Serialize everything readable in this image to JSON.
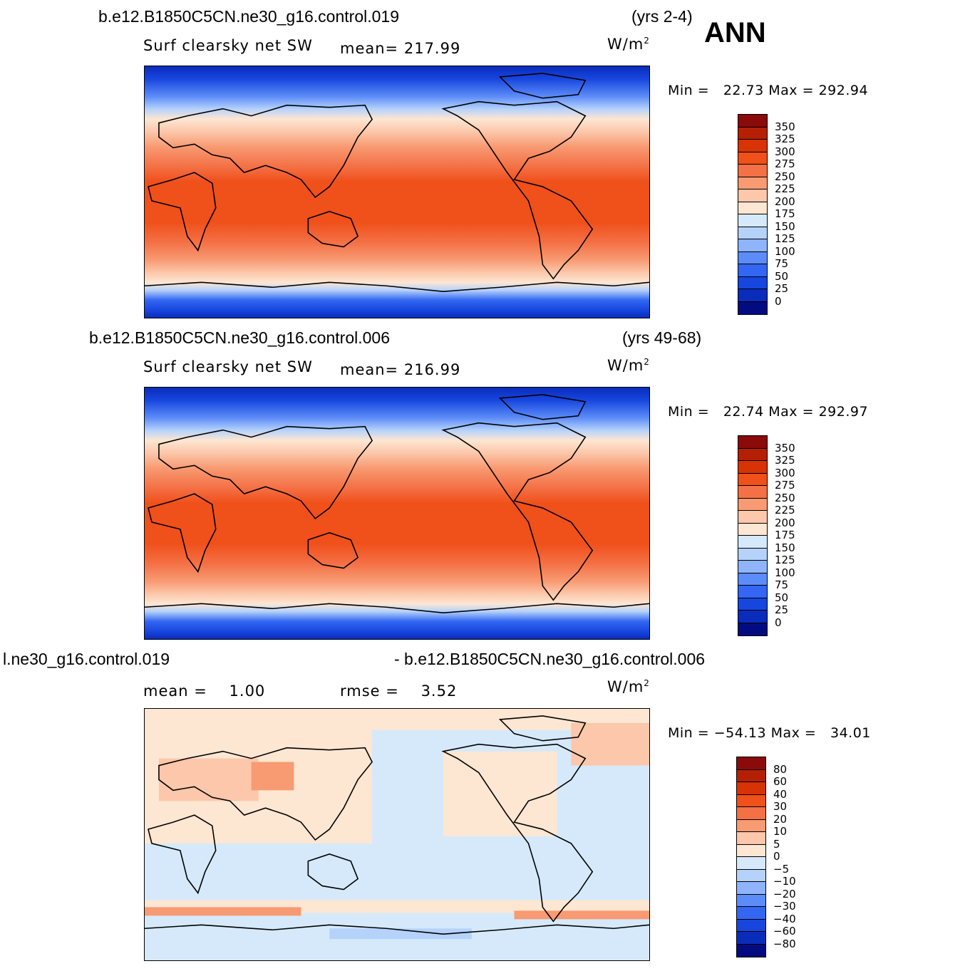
{
  "header": {
    "season": "ANN"
  },
  "panels": [
    {
      "case": "b.e12.B1850C5CN.ne30_g16.control.019",
      "years": "(yrs 2-4)",
      "variable": "Surf clearsky net SW",
      "mean_label": "mean=",
      "mean": "217.99",
      "units": "W/m",
      "units_exp": "2",
      "min_label": "Min =",
      "min": "22.73",
      "max_label": "Max =",
      "max": "292.94"
    },
    {
      "case": "b.e12.B1850C5CN.ne30_g16.control.006",
      "years": "(yrs 49-68)",
      "variable": "Surf clearsky net SW",
      "mean_label": "mean=",
      "mean": "216.99",
      "units": "W/m",
      "units_exp": "2",
      "min_label": "Min =",
      "min": "22.74",
      "max_label": "Max =",
      "max": "292.97"
    },
    {
      "case": "l.ne30_g16.control.019",
      "case_b": "- b.e12.B1850C5CN.ne30_g16.control.006",
      "mean_label": "mean =",
      "mean": "1.00",
      "rmse_label": "rmse =",
      "rmse": "3.52",
      "units": "W/m",
      "units_exp": "2",
      "min_label": "Min =",
      "min": "−54.13",
      "max_label": "Max =",
      "max": "34.01"
    }
  ],
  "colorbars": {
    "absolute": {
      "ticks": [
        "350",
        "325",
        "300",
        "275",
        "250",
        "225",
        "200",
        "175",
        "150",
        "125",
        "100",
        "75",
        "50",
        "25",
        "0"
      ],
      "colors": [
        "#8b0a0a",
        "#b52005",
        "#d83305",
        "#f0501a",
        "#f47045",
        "#f89a72",
        "#fcc7aa",
        "#fde6d2",
        "#d5e9fa",
        "#b5d2fb",
        "#8fb4fb",
        "#5c8cf8",
        "#3366f2",
        "#1746de",
        "#0a2cbb",
        "#020c80"
      ]
    },
    "difference": {
      "ticks": [
        "80",
        "60",
        "40",
        "30",
        "20",
        "10",
        "5",
        "0",
        "−5",
        "−10",
        "−20",
        "−30",
        "−40",
        "−60",
        "−80"
      ],
      "colors": [
        "#8b0a0a",
        "#b52005",
        "#d83305",
        "#f0501a",
        "#f47045",
        "#f89a72",
        "#fcc7aa",
        "#fde6d2",
        "#d5e9fa",
        "#b5d2fb",
        "#8fb4fb",
        "#5c8cf8",
        "#3366f2",
        "#1746de",
        "#0a2cbb",
        "#020c80"
      ]
    }
  }
}
